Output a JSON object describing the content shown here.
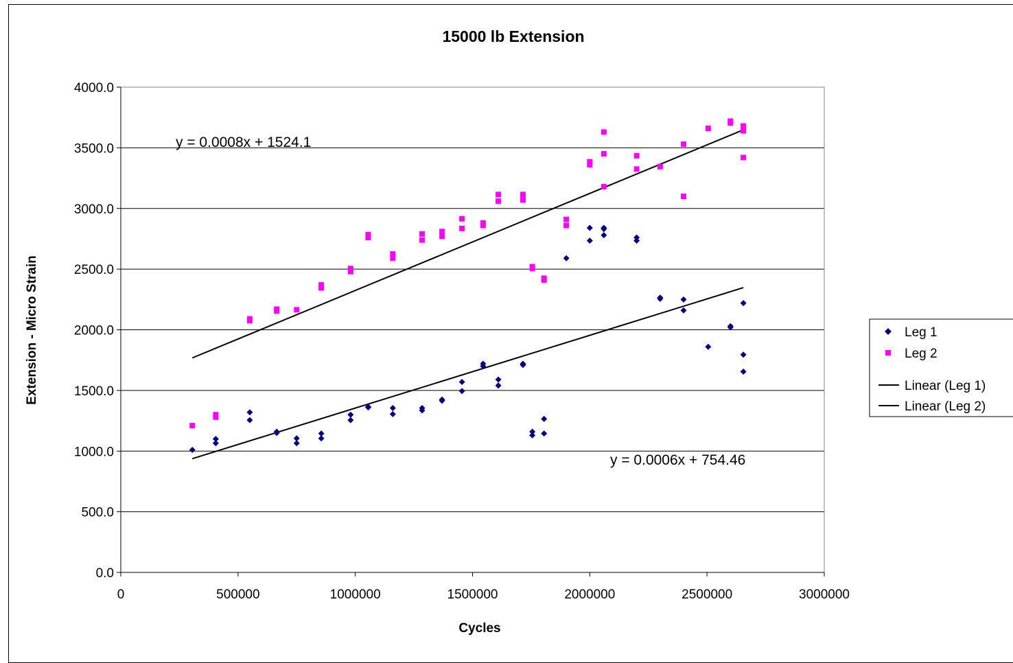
{
  "chart_data": {
    "type": "scatter",
    "title": "15000 lb Extension",
    "xlabel": "Cycles",
    "ylabel": "Extension  -  Micro Strain",
    "xlim": [
      0,
      3000000
    ],
    "ylim": [
      0,
      4000
    ],
    "x_ticks": [
      "0",
      "500000",
      "1000000",
      "1500000",
      "2000000",
      "2500000",
      "3000000"
    ],
    "y_ticks": [
      "0.0",
      "500.0",
      "1000.0",
      "1500.0",
      "2000.0",
      "2500.0",
      "3000.0",
      "3500.0",
      "4000.0"
    ],
    "grid": "horizontal",
    "legend_position": "right",
    "series": [
      {
        "name": "Leg 1",
        "marker": "diamond",
        "color": "#000080",
        "points": [
          [
            305000,
            1010
          ],
          [
            405000,
            1100
          ],
          [
            405000,
            1065
          ],
          [
            550000,
            1320
          ],
          [
            550000,
            1255
          ],
          [
            665000,
            1150
          ],
          [
            665000,
            1160
          ],
          [
            750000,
            1105
          ],
          [
            750000,
            1065
          ],
          [
            855000,
            1145
          ],
          [
            855000,
            1105
          ],
          [
            980000,
            1300
          ],
          [
            980000,
            1255
          ],
          [
            1055000,
            1365
          ],
          [
            1055000,
            1360
          ],
          [
            1160000,
            1355
          ],
          [
            1160000,
            1305
          ],
          [
            1285000,
            1355
          ],
          [
            1285000,
            1335
          ],
          [
            1370000,
            1425
          ],
          [
            1370000,
            1415
          ],
          [
            1455000,
            1570
          ],
          [
            1455000,
            1495
          ],
          [
            1545000,
            1720
          ],
          [
            1545000,
            1700
          ],
          [
            1610000,
            1590
          ],
          [
            1610000,
            1540
          ],
          [
            1715000,
            1720
          ],
          [
            1715000,
            1710
          ],
          [
            1755000,
            1160
          ],
          [
            1755000,
            1130
          ],
          [
            1805000,
            1265
          ],
          [
            1805000,
            1145
          ],
          [
            1900000,
            2590
          ],
          [
            2000000,
            2840
          ],
          [
            2000000,
            2735
          ],
          [
            2060000,
            2840
          ],
          [
            2060000,
            2830
          ],
          [
            2060000,
            2780
          ],
          [
            2200000,
            2760
          ],
          [
            2200000,
            2735
          ],
          [
            2300000,
            2265
          ],
          [
            2300000,
            2255
          ],
          [
            2400000,
            2250
          ],
          [
            2400000,
            2160
          ],
          [
            2505000,
            1860
          ],
          [
            2600000,
            2030
          ],
          [
            2600000,
            2020
          ],
          [
            2655000,
            2220
          ],
          [
            2655000,
            1795
          ],
          [
            2655000,
            1655
          ]
        ]
      },
      {
        "name": "Leg 2",
        "marker": "square",
        "color": "#ff00ff",
        "points": [
          [
            305000,
            1210
          ],
          [
            405000,
            1300
          ],
          [
            405000,
            1280
          ],
          [
            550000,
            2090
          ],
          [
            550000,
            2075
          ],
          [
            665000,
            2170
          ],
          [
            665000,
            2155
          ],
          [
            750000,
            2165
          ],
          [
            855000,
            2370
          ],
          [
            855000,
            2345
          ],
          [
            980000,
            2505
          ],
          [
            980000,
            2480
          ],
          [
            1055000,
            2785
          ],
          [
            1055000,
            2760
          ],
          [
            1160000,
            2625
          ],
          [
            1160000,
            2590
          ],
          [
            1285000,
            2790
          ],
          [
            1285000,
            2740
          ],
          [
            1370000,
            2810
          ],
          [
            1370000,
            2770
          ],
          [
            1455000,
            2915
          ],
          [
            1455000,
            2835
          ],
          [
            1545000,
            2880
          ],
          [
            1545000,
            2860
          ],
          [
            1610000,
            3115
          ],
          [
            1610000,
            3060
          ],
          [
            1715000,
            3115
          ],
          [
            1715000,
            3070
          ],
          [
            1755000,
            2520
          ],
          [
            1755000,
            2505
          ],
          [
            1805000,
            2425
          ],
          [
            1805000,
            2410
          ],
          [
            1900000,
            2910
          ],
          [
            1900000,
            2860
          ],
          [
            2000000,
            3385
          ],
          [
            2000000,
            3360
          ],
          [
            2060000,
            3630
          ],
          [
            2060000,
            3450
          ],
          [
            2060000,
            3180
          ],
          [
            2200000,
            3435
          ],
          [
            2200000,
            3325
          ],
          [
            2300000,
            3345
          ],
          [
            2400000,
            3530
          ],
          [
            2400000,
            3100
          ],
          [
            2505000,
            3660
          ],
          [
            2600000,
            3720
          ],
          [
            2600000,
            3705
          ],
          [
            2655000,
            3680
          ],
          [
            2655000,
            3640
          ],
          [
            2655000,
            3420
          ]
        ]
      },
      {
        "name": "Linear (Leg 1)",
        "type": "trendline",
        "color": "#000000",
        "slope": 0.0006,
        "intercept": 754.46,
        "x_range": [
          305000,
          2655000
        ],
        "equation": "y = 0.0006x + 754.46"
      },
      {
        "name": "Linear (Leg 2)",
        "type": "trendline",
        "color": "#000000",
        "slope": 0.0008,
        "intercept": 1524.1,
        "x_range": [
          305000,
          2655000
        ],
        "equation": "y = 0.0008x + 1524.1"
      }
    ]
  }
}
